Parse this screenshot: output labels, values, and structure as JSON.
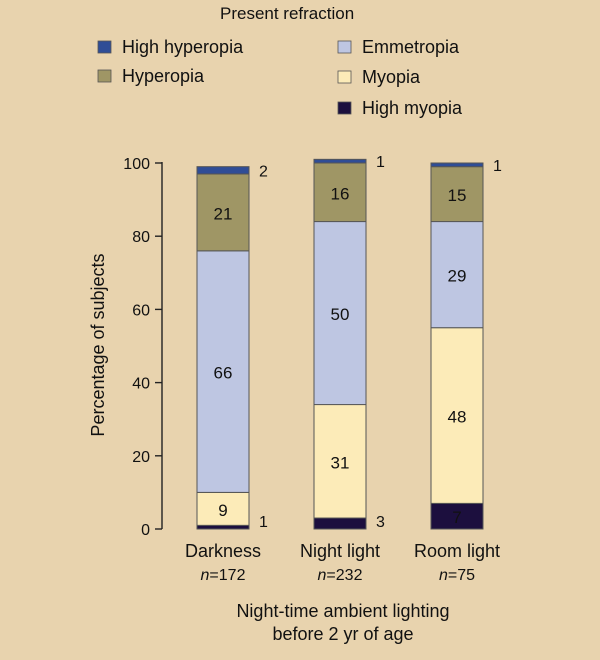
{
  "chart_data": {
    "type": "bar",
    "stacked": true,
    "legend_title": "Present refraction",
    "categories": [
      "Darkness",
      "Night light",
      "Room light"
    ],
    "n_prefix": "n",
    "n_values": [
      "=172",
      "=232",
      "=75"
    ],
    "ylabel": "Percentage of subjects",
    "xlabel_lines": [
      "Night-time ambient lighting",
      "before 2 yr of age"
    ],
    "ylim": [
      0,
      100
    ],
    "yticks": [
      0,
      20,
      40,
      60,
      80,
      100
    ],
    "series": [
      {
        "name": "High myopia",
        "color": "#1c0f3e",
        "values": [
          1,
          3,
          7
        ],
        "labels": [
          "1",
          "3",
          "7"
        ]
      },
      {
        "name": "Myopia",
        "color": "#fcebb8",
        "values": [
          9,
          31,
          48
        ],
        "labels": [
          "9",
          "31",
          "48"
        ]
      },
      {
        "name": "Emmetropia",
        "color": "#bec6e2",
        "values": [
          66,
          50,
          29
        ],
        "labels": [
          "66",
          "50",
          "29"
        ]
      },
      {
        "name": "Hyperopia",
        "color": "#9f9665",
        "values": [
          21,
          16,
          15
        ],
        "labels": [
          "21",
          "16",
          "15"
        ]
      },
      {
        "name": "High hyperopia",
        "color": "#2f4d96",
        "values": [
          2,
          1,
          1
        ],
        "labels": [
          "2",
          "1",
          "1"
        ]
      }
    ],
    "legend_order": [
      "High hyperopia",
      "Hyperopia",
      "Emmetropia",
      "Myopia",
      "High myopia"
    ]
  }
}
